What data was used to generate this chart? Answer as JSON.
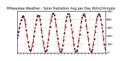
{
  "title": "Milwaukee Weather - Solar Radiation Avg per Day W/m2/minute",
  "background_color": "#ffffff",
  "line_color": "#dd0000",
  "line_style": "--",
  "line_width": 0.8,
  "marker_color": "#000000",
  "marker_size": 1.0,
  "grid_color": "#999999",
  "grid_style": ":",
  "grid_linewidth": 0.4,
  "y_values": [
    180,
    210,
    250,
    300,
    350,
    390,
    420,
    440,
    430,
    390,
    340,
    270,
    200,
    130,
    70,
    30,
    20,
    40,
    80,
    130,
    190,
    260,
    330,
    390,
    430,
    450,
    440,
    400,
    340,
    270,
    190,
    120,
    60,
    20,
    10,
    30,
    80,
    150,
    230,
    310,
    380,
    430,
    460,
    470,
    450,
    400,
    330,
    250,
    170,
    100,
    45,
    15,
    10,
    35,
    85,
    150,
    230,
    310,
    380,
    430,
    460,
    460,
    440,
    390,
    330,
    250,
    170,
    100,
    45,
    15,
    10,
    30,
    80,
    145,
    220,
    300,
    370,
    420,
    450,
    460,
    440,
    390,
    320,
    245,
    165,
    95,
    40,
    15,
    15,
    40,
    95,
    160,
    240,
    320,
    390,
    430,
    455,
    460,
    440,
    395,
    330,
    255,
    170,
    95,
    40
  ],
  "ylim": [
    0,
    500
  ],
  "ytick_positions": [
    0,
    100,
    200,
    300,
    400,
    500
  ],
  "ytick_labels": [
    "0",
    "100",
    "200",
    "300",
    "400",
    "500"
  ],
  "num_vgrid_lines": 12,
  "title_fontsize": 3.5,
  "tick_label_fontsize": 3.0
}
